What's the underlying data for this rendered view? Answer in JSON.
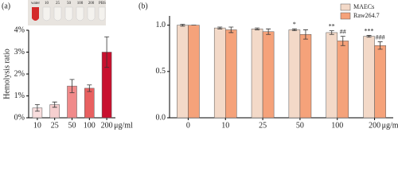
{
  "chart_data": [
    {
      "type": "bar",
      "panel_label": "(a)",
      "ylabel": "Hemolysis ratio",
      "xlabel": "μg/ml",
      "image_labels": [
        "water",
        "10",
        "25",
        "50",
        "100",
        "200",
        "PBS"
      ],
      "categories": [
        "10",
        "25",
        "50",
        "100",
        "200"
      ],
      "values": [
        0.45,
        0.6,
        1.45,
        1.35,
        3.0
      ],
      "errors": [
        0.15,
        0.12,
        0.3,
        0.15,
        0.7
      ],
      "colors": [
        "#f9dede",
        "#f6cfcf",
        "#f08a8a",
        "#e86060",
        "#c8102e"
      ],
      "ylim": [
        0,
        4
      ],
      "yticks": [
        {
          "value": 0,
          "label": "0%"
        },
        {
          "value": 1,
          "label": "1%"
        },
        {
          "value": 2,
          "label": "2%"
        },
        {
          "value": 3,
          "label": "3%"
        },
        {
          "value": 4,
          "label": "4%"
        }
      ]
    },
    {
      "type": "bar",
      "panel_label": "(b)",
      "xlabel": "μg/ml",
      "legend": "top-right",
      "categories": [
        "0",
        "10",
        "25",
        "50",
        "100",
        "200"
      ],
      "series": [
        {
          "name": "MAECs",
          "color": "#f3d9c8",
          "values": [
            1.0,
            0.97,
            0.96,
            0.95,
            0.92,
            0.88
          ],
          "errors": [
            0.01,
            0.01,
            0.01,
            0.01,
            0.02,
            0.01
          ],
          "annotations": [
            null,
            null,
            null,
            "*",
            "**",
            "***"
          ]
        },
        {
          "name": "Raw264.7",
          "color": "#f5a27a",
          "values": [
            1.0,
            0.95,
            0.93,
            0.9,
            0.83,
            0.78
          ],
          "errors": [
            0.0,
            0.03,
            0.03,
            0.05,
            0.05,
            0.04
          ],
          "annotations": [
            null,
            null,
            null,
            null,
            "##",
            "###"
          ]
        }
      ],
      "ylim": [
        0,
        1.1
      ],
      "yticks": [
        {
          "value": 0,
          "label": "0.0"
        },
        {
          "value": 0.5,
          "label": "0.5"
        },
        {
          "value": 1,
          "label": "1.0"
        }
      ]
    }
  ]
}
